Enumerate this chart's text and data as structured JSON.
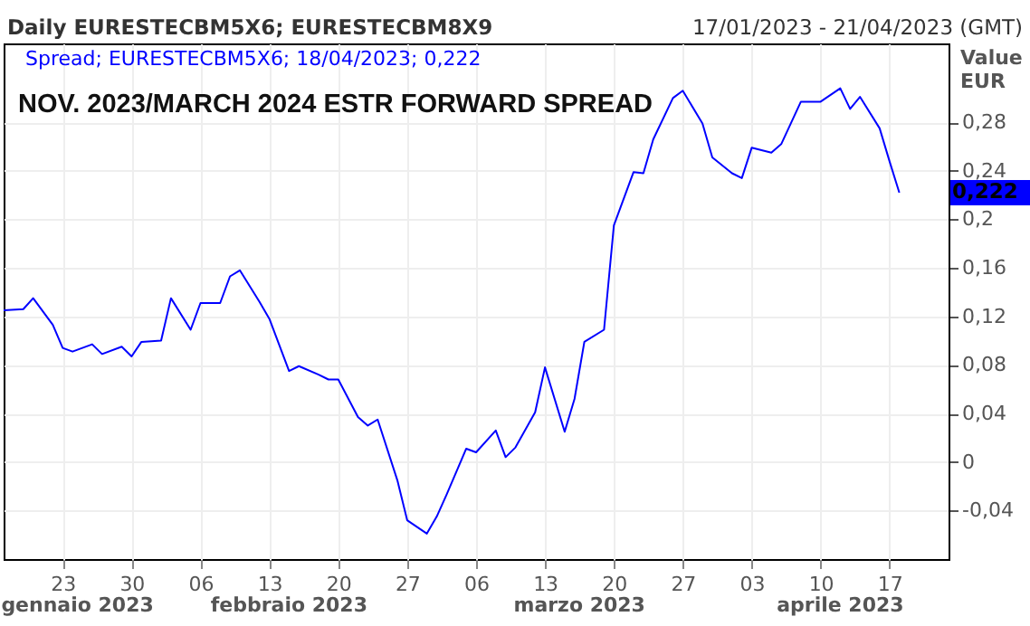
{
  "chart_data": {
    "type": "line",
    "title": "Daily EURESTECBM5X6; EURESTECBM8X9",
    "subtitle": "17/01/2023 - 21/04/2023 (GMT)",
    "ylabel": "Value EUR",
    "annotations": [
      "NOV. 2023/MARCH 2024 ESTR FORWARD SPREAD",
      "0,222",
      "gennaio 2023",
      "febbraio 2023",
      "marzo 2023",
      "aprile 2023"
    ],
    "x": [
      "2023-01-17",
      "2023-01-19",
      "2023-01-20",
      "2023-01-22",
      "2023-01-23",
      "2023-01-24",
      "2023-01-26",
      "2023-01-27",
      "2023-01-29",
      "2023-01-30",
      "2023-01-31",
      "2023-02-02",
      "2023-02-03",
      "2023-02-05",
      "2023-02-06",
      "2023-02-08",
      "2023-02-09",
      "2023-02-10",
      "2023-02-12",
      "2023-02-13",
      "2023-02-15",
      "2023-02-16",
      "2023-02-18",
      "2023-02-19",
      "2023-02-20",
      "2023-02-22",
      "2023-02-23",
      "2023-02-24",
      "2023-02-26",
      "2023-02-27",
      "2023-03-01",
      "2023-03-02",
      "2023-03-03",
      "2023-03-05",
      "2023-03-06",
      "2023-03-08",
      "2023-03-09",
      "2023-03-10",
      "2023-03-12",
      "2023-03-13",
      "2023-03-15",
      "2023-03-16",
      "2023-03-17",
      "2023-03-19",
      "2023-03-20",
      "2023-03-22",
      "2023-03-23",
      "2023-03-24",
      "2023-03-26",
      "2023-03-27",
      "2023-03-29",
      "2023-03-30",
      "2023-04-01",
      "2023-04-02",
      "2023-04-03",
      "2023-04-05",
      "2023-04-06",
      "2023-04-08",
      "2023-04-09",
      "2023-04-10",
      "2023-04-12",
      "2023-04-13",
      "2023-04-14",
      "2023-04-16",
      "2023-04-17",
      "2023-04-18"
    ],
    "series": [
      {
        "name": "Spread; EURESTECBM5X6; 18/04/2023; 0,222",
        "color": "#0000ff",
        "values": [
          0.125,
          0.126,
          0.135,
          0.113,
          0.094,
          0.091,
          0.097,
          0.089,
          0.095,
          0.087,
          0.099,
          0.1,
          0.135,
          0.109,
          0.131,
          0.131,
          0.153,
          0.158,
          0.132,
          0.118,
          0.075,
          0.079,
          0.072,
          0.068,
          0.068,
          0.037,
          0.03,
          0.035,
          -0.015,
          -0.048,
          -0.059,
          -0.045,
          -0.027,
          0.011,
          0.008,
          0.026,
          0.004,
          0.012,
          0.041,
          0.078,
          0.025,
          0.052,
          0.099,
          0.109,
          0.195,
          0.239,
          0.238,
          0.266,
          0.3,
          0.306,
          0.279,
          0.251,
          0.238,
          0.234,
          0.259,
          0.255,
          0.262,
          0.297,
          0.297,
          0.297,
          0.308,
          0.291,
          0.301,
          0.275,
          0.248,
          0.222
        ]
      }
    ],
    "xlim": [
      "2023-01-17",
      "2023-04-23"
    ],
    "xticks": [
      {
        "value": "2023-01-23",
        "label": "23"
      },
      {
        "value": "2023-01-30",
        "label": "30"
      },
      {
        "value": "2023-02-06",
        "label": "06"
      },
      {
        "value": "2023-02-13",
        "label": "13"
      },
      {
        "value": "2023-02-20",
        "label": "20"
      },
      {
        "value": "2023-02-27",
        "label": "27"
      },
      {
        "value": "2023-03-06",
        "label": "06"
      },
      {
        "value": "2023-03-13",
        "label": "13"
      },
      {
        "value": "2023-03-20",
        "label": "20"
      },
      {
        "value": "2023-03-27",
        "label": "27"
      },
      {
        "value": "2023-04-03",
        "label": "03"
      },
      {
        "value": "2023-04-10",
        "label": "10"
      },
      {
        "value": "2023-04-17",
        "label": "17"
      }
    ],
    "ylim": [
      -0.08,
      0.345
    ],
    "yticks": [
      {
        "value": -0.04,
        "label": "-0,04"
      },
      0,
      {
        "value": 0.04,
        "label": "0,04"
      },
      {
        "value": 0.08,
        "label": "0,08"
      },
      {
        "value": 0.12,
        "label": "0,12"
      },
      {
        "value": 0.16,
        "label": "0,16"
      },
      {
        "value": 0.2,
        "label": "0,2"
      },
      {
        "value": 0.24,
        "label": "0,24"
      },
      {
        "value": 0.28,
        "label": "0,28"
      }
    ],
    "grid": true,
    "legend": "top left",
    "line_style": "solid",
    "marker": "none"
  }
}
